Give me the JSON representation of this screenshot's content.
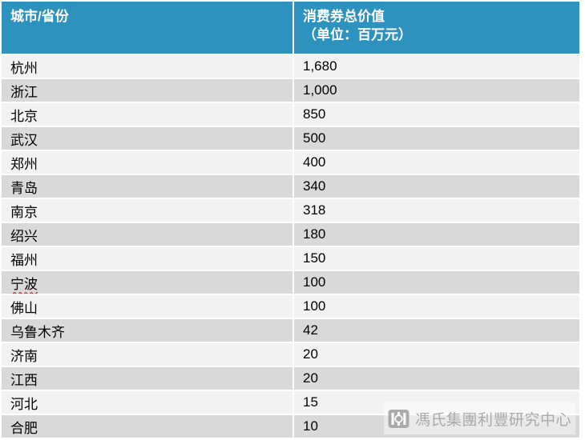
{
  "colors": {
    "header_bg": "#2E92BE",
    "header_text": "#FFFFFF",
    "row_light": "#F2F2F2",
    "row_dark": "#D9D9D9",
    "body_text": "#000000",
    "watermark_gray": "#A9A9A9",
    "spellcheck_underline": "#C00000"
  },
  "table": {
    "header": {
      "city_label": "城市/省份",
      "value_label_line1": "消费券总价值",
      "value_label_line2": "（单位：百万元）"
    },
    "rows": [
      {
        "city": "杭州",
        "value": "1,680",
        "spellcheck": false
      },
      {
        "city": "浙江",
        "value": "1,000",
        "spellcheck": false
      },
      {
        "city": "北京",
        "value": "850",
        "spellcheck": false
      },
      {
        "city": "武汉",
        "value": "500",
        "spellcheck": false
      },
      {
        "city": "郑州",
        "value": "400",
        "spellcheck": false
      },
      {
        "city": "青岛",
        "value": "340",
        "spellcheck": false
      },
      {
        "city": "南京",
        "value": "318",
        "spellcheck": false
      },
      {
        "city": "绍兴",
        "value": "180",
        "spellcheck": false
      },
      {
        "city": "福州",
        "value": "150",
        "spellcheck": false
      },
      {
        "city": "宁波",
        "value": "100",
        "spellcheck": true
      },
      {
        "city": "佛山",
        "value": "100",
        "spellcheck": false
      },
      {
        "city": "乌鲁木齐",
        "value": "42",
        "spellcheck": false
      },
      {
        "city": "济南",
        "value": "20",
        "spellcheck": false
      },
      {
        "city": "江西",
        "value": "20",
        "spellcheck": false
      },
      {
        "city": "河北",
        "value": "15",
        "spellcheck": false
      },
      {
        "city": "合肥",
        "value": "10",
        "spellcheck": false
      }
    ]
  },
  "watermark": {
    "text": "馮氏集團利豐研究中心",
    "icon": "fung-seal-icon"
  },
  "chart_data": {
    "type": "table",
    "title": "",
    "columns": [
      "城市/省份",
      "消费券总价值（单位：百万元）"
    ],
    "categories": [
      "杭州",
      "浙江",
      "北京",
      "武汉",
      "郑州",
      "青岛",
      "南京",
      "绍兴",
      "福州",
      "宁波",
      "佛山",
      "乌鲁木齐",
      "济南",
      "江西",
      "河北",
      "合肥"
    ],
    "values": [
      1680,
      1000,
      850,
      500,
      400,
      340,
      318,
      180,
      150,
      100,
      100,
      42,
      20,
      20,
      15,
      10
    ]
  }
}
